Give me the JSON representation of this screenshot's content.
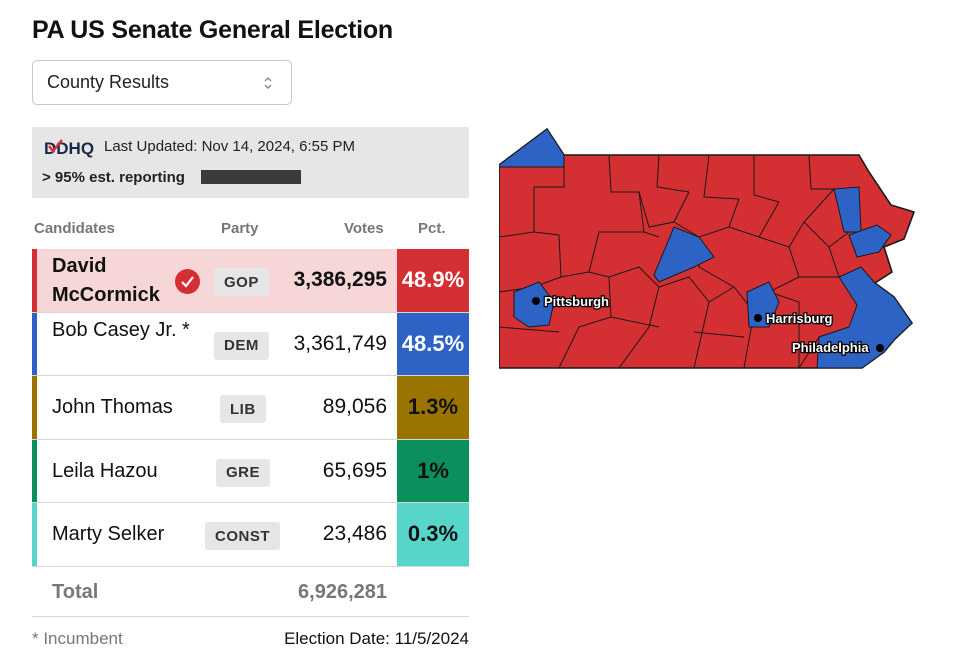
{
  "title": "PA US Senate General Election",
  "select": {
    "value": "County Results",
    "icon": "chevron-up-down-icon"
  },
  "info": {
    "logo": "DDHQ",
    "last_updated": "Last Updated: Nov 14, 2024, 6:55 PM",
    "reporting": "> 95% est. reporting",
    "reporting_fraction": 0.95
  },
  "table": {
    "headers": {
      "candidates": "Candidates",
      "party": "Party",
      "votes": "Votes",
      "pct": "Pct."
    },
    "rows": [
      {
        "name": "David McCormick",
        "party": "GOP",
        "votes": "3,386,295",
        "pct": "48.9%",
        "winner": true,
        "color": "#d42f32",
        "bg": "#f6d6d6"
      },
      {
        "name": "Bob Casey Jr. *",
        "party": "DEM",
        "votes": "3,361,749",
        "pct": "48.5%",
        "color": "#2c63c4"
      },
      {
        "name": "John Thomas",
        "party": "LIB",
        "votes": "89,056",
        "pct": "1.3%",
        "color": "#9a7400"
      },
      {
        "name": "Leila Hazou",
        "party": "GRE",
        "votes": "65,695",
        "pct": "1%",
        "color": "#0b8f5c"
      },
      {
        "name": "Marty Selker",
        "party": "CONST",
        "votes": "23,486",
        "pct": "0.3%",
        "color": "#58d5c9"
      }
    ],
    "total_label": "Total",
    "total_votes": "6,926,281"
  },
  "footer": {
    "incumbent_note": "* Incumbent",
    "election_date": "Election Date: 11/5/2024"
  },
  "map": {
    "cities": [
      "Pittsburgh",
      "Harrisburg",
      "Philadelphia"
    ],
    "colors": {
      "gop": "#d42f32",
      "dem": "#2c63c4",
      "border": "#1a1a1a"
    }
  }
}
